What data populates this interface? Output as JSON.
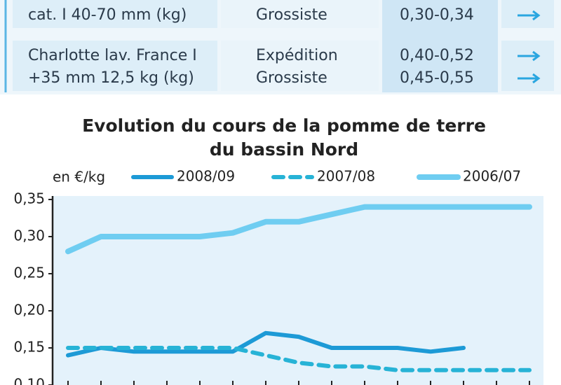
{
  "table": {
    "rows": [
      {
        "product": [
          "cat. I 40-70 mm (kg)"
        ],
        "stages": [
          "Grossiste"
        ],
        "prices": [
          "0,30-0,34"
        ]
      },
      {
        "product": [
          "Charlotte lav. France I",
          "+35 mm 12,5 kg (kg)"
        ],
        "stages": [
          "Expédition",
          "Grossiste"
        ],
        "prices": [
          "0,40-0,52",
          "0,45-0,55"
        ]
      }
    ]
  },
  "chart_data": {
    "type": "line",
    "title": [
      "Evolution du cours de la pomme de terre",
      "du bassin Nord"
    ],
    "y_label": "en €/kg",
    "categories": [
      null,
      null,
      null,
      null,
      null,
      null,
      null,
      null,
      null,
      null,
      null,
      null,
      null,
      null,
      null
    ],
    "series": [
      {
        "name": "2008/09",
        "color": "#1d9ad6",
        "dashed": false,
        "values": [
          0.14,
          0.15,
          0.145,
          0.145,
          0.145,
          0.145,
          0.17,
          0.165,
          0.15,
          0.15,
          0.15,
          0.145,
          0.15,
          null,
          null
        ]
      },
      {
        "name": "2007/08",
        "color": "#27b3d6",
        "dashed": true,
        "values": [
          0.15,
          0.15,
          0.15,
          0.15,
          0.15,
          0.15,
          0.14,
          0.13,
          0.125,
          0.125,
          0.12,
          0.12,
          0.12,
          0.12,
          0.12
        ]
      },
      {
        "name": "2006/07",
        "color": "#6fcdf1",
        "dashed": false,
        "values": [
          0.28,
          0.3,
          0.3,
          0.3,
          0.3,
          0.305,
          0.32,
          0.32,
          0.33,
          0.34,
          0.34,
          0.34,
          0.34,
          0.34,
          0.34
        ]
      }
    ],
    "ylim": [
      0.1,
      0.35
    ],
    "yticks": [
      {
        "value": 0.35,
        "label": "0,35"
      },
      {
        "value": 0.3,
        "label": "0,30"
      },
      {
        "value": 0.25,
        "label": "0,25"
      },
      {
        "value": 0.2,
        "label": "0,20"
      },
      {
        "value": 0.15,
        "label": "0,15"
      },
      {
        "value": 0.1,
        "label": "0,10"
      }
    ]
  }
}
